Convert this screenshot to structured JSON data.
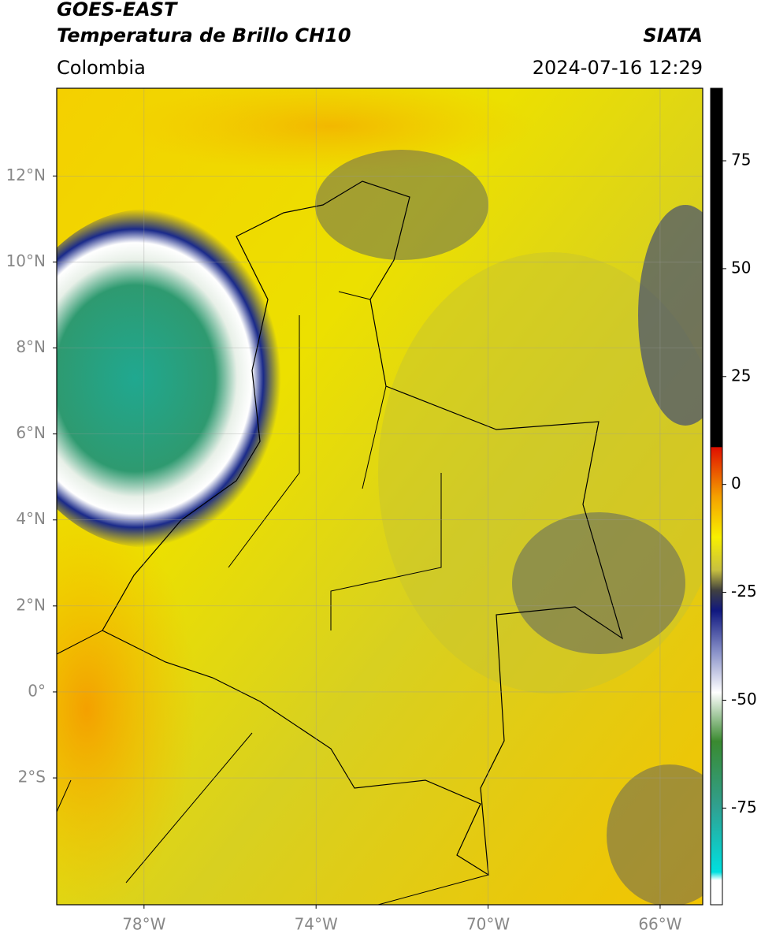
{
  "header": {
    "title": "GOES-EAST",
    "subtitle": "Temperatura de Brillo CH10",
    "region": "Colombia",
    "source": "SIATA",
    "datetime": "2024-07-16 12:29"
  },
  "map": {
    "xlim": [
      -80.03,
      -65.01
    ],
    "ylim": [
      -4.95,
      14.04
    ],
    "xticks": [
      {
        "value": -78,
        "label": "78°W"
      },
      {
        "value": -74,
        "label": "74°W"
      },
      {
        "value": -70,
        "label": "70°W"
      },
      {
        "value": -66,
        "label": "66°W"
      }
    ],
    "yticks": [
      {
        "value": 12,
        "label": "12°N"
      },
      {
        "value": 10,
        "label": "10°N"
      },
      {
        "value": 8,
        "label": "8°N"
      },
      {
        "value": 6,
        "label": "6°N"
      },
      {
        "value": 4,
        "label": "4°N"
      },
      {
        "value": 2,
        "label": "2°N"
      },
      {
        "value": 0,
        "label": "0°"
      },
      {
        "value": -2,
        "label": "2°S"
      }
    ],
    "grid": true
  },
  "colorbar": {
    "lim": [
      -97.4,
      91.8
    ],
    "ticks": [
      75,
      50,
      25,
      0,
      -25,
      -50,
      -75
    ]
  }
}
